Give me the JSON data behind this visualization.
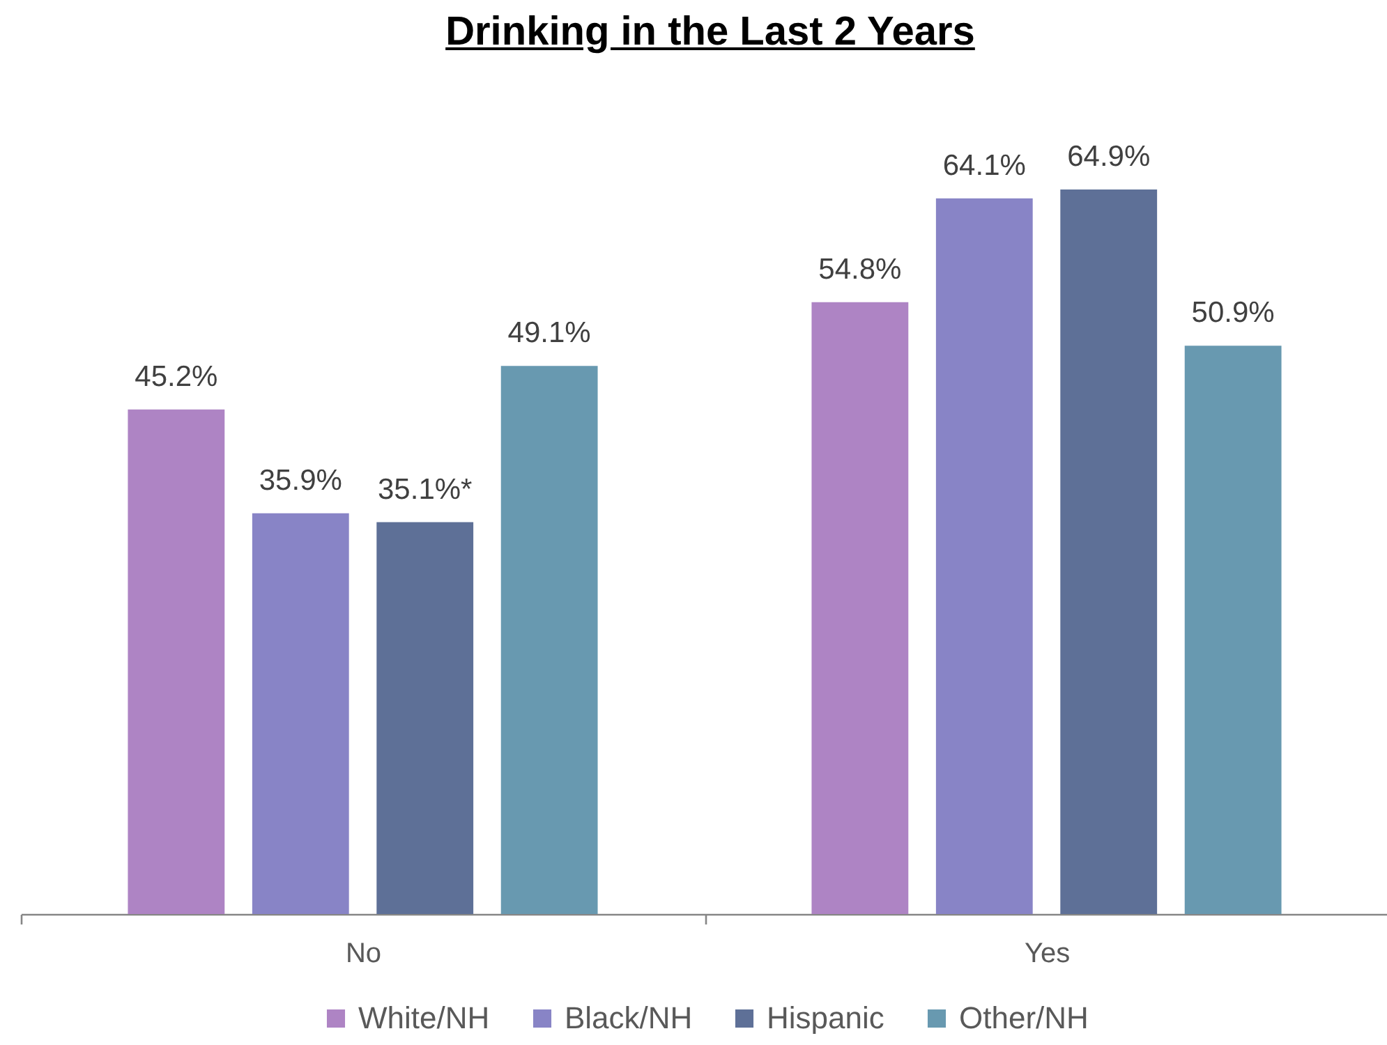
{
  "chart_data": {
    "type": "bar",
    "title": "Drinking in the Last 2 Years",
    "categories": [
      "No",
      "Yes"
    ],
    "series": [
      {
        "name": "White/NH",
        "color": "#ae84c4",
        "values": [
          45.2,
          54.8
        ],
        "value_labels": [
          "45.2%",
          "54.8%"
        ]
      },
      {
        "name": "Black/NH",
        "color": "#8884c6",
        "values": [
          35.9,
          64.1
        ],
        "value_labels": [
          "35.9%",
          "64.1%"
        ]
      },
      {
        "name": "Hispanic",
        "color": "#5e7097",
        "values": [
          35.1,
          64.9
        ],
        "value_labels": [
          "35.1%*",
          "64.9%"
        ]
      },
      {
        "name": "Other/NH",
        "color": "#6899b0",
        "values": [
          49.1,
          50.9
        ],
        "value_labels": [
          "49.1%",
          "50.9%"
        ]
      }
    ],
    "tick_labels": "x",
    "legend": "bottom"
  }
}
